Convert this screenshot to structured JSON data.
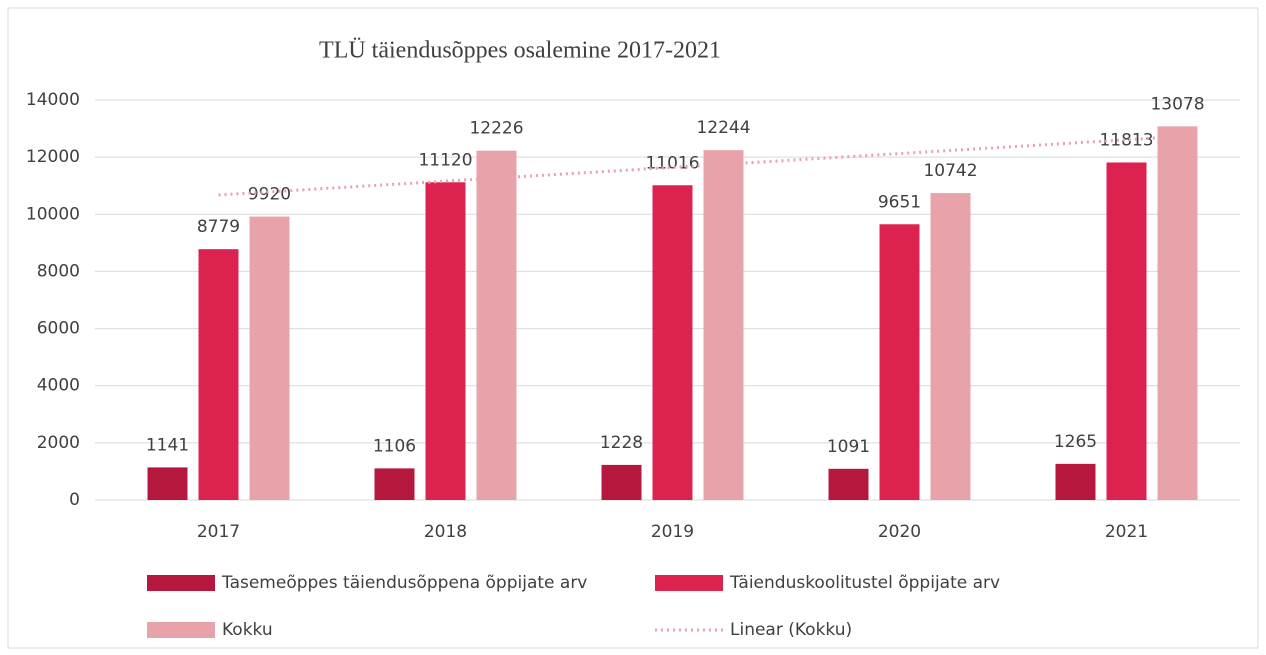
{
  "chart_data": {
    "type": "bar",
    "title": "TLÜ täiendusõppes osalemine 2017-2021",
    "categories": [
      "2017",
      "2018",
      "2019",
      "2020",
      "2021"
    ],
    "series": [
      {
        "name": "Tasemeõppes täiendusõppena õppijate arv",
        "color": "#b5173d",
        "values": [
          1141,
          1106,
          1228,
          1091,
          1265
        ]
      },
      {
        "name": "Täienduskoolitustel õppijate arv",
        "color": "#dc2350",
        "values": [
          8779,
          11120,
          11016,
          9651,
          11813
        ]
      },
      {
        "name": "Kokku",
        "color": "#e8a3aa",
        "values": [
          9920,
          12226,
          12244,
          10742,
          13078
        ]
      }
    ],
    "trendline": {
      "name": "Linear (Kokku)",
      "of": "Kokku",
      "color": "#e8a3aa"
    },
    "ylim": [
      0,
      14000
    ],
    "yticks": [
      0,
      2000,
      4000,
      6000,
      8000,
      10000,
      12000,
      14000
    ],
    "grid": true
  }
}
